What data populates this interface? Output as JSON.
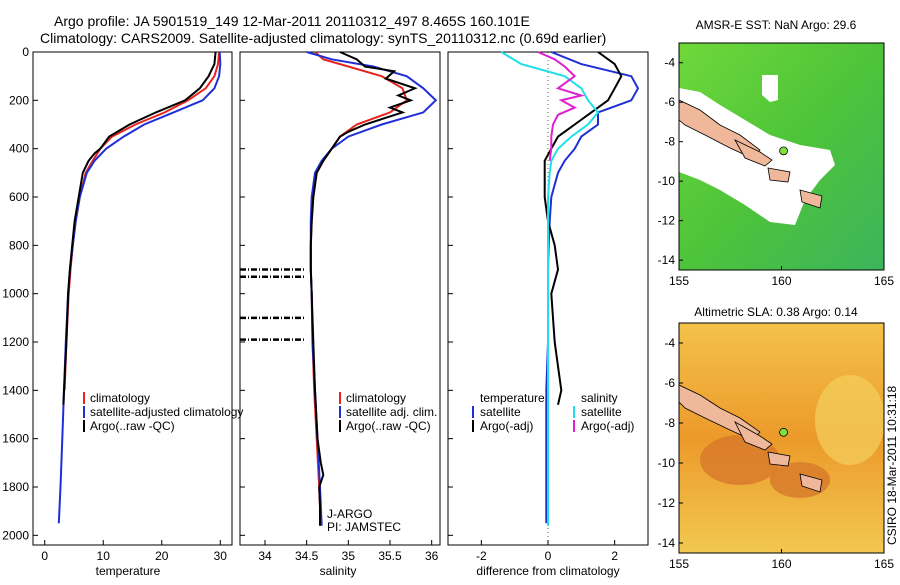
{
  "header": {
    "line1": "Argo profile: JA 5901519_149 12-Mar-2011 20110312_497 8.465S 160.101E",
    "line2": "Climatology: CARS2009. Satellite-adjusted climatology: synTS_20110312.nc (0.69d earlier)"
  },
  "colors": {
    "climatology": "#e8231e",
    "satellite": "#1f2fd6",
    "argo": "#000000",
    "satellite_diff_salt": "#1fe0e8",
    "argo_diff_salt": "#e01fd0"
  },
  "chart_data": [
    {
      "type": "line",
      "id": "temperature",
      "xlabel": "temperature",
      "ylabel": "",
      "xlim": [
        -2,
        32
      ],
      "ylim": [
        2040,
        0
      ],
      "xticks": [
        0,
        10,
        20,
        30
      ],
      "yticks": [
        0,
        200,
        400,
        600,
        800,
        1000,
        1200,
        1400,
        1600,
        1800,
        2000
      ],
      "legend": [
        "climatology",
        "satellite-adjusted climatology",
        "Argo(..raw -QC)"
      ],
      "series": [
        {
          "name": "climatology",
          "color": "#e8231e",
          "points": [
            [
              29.8,
              0
            ],
            [
              29.6,
              50
            ],
            [
              29.0,
              100
            ],
            [
              27.5,
              150
            ],
            [
              24.5,
              200
            ],
            [
              20.5,
              250
            ],
            [
              15.5,
              300
            ],
            [
              11.5,
              350
            ],
            [
              9.5,
              400
            ],
            [
              8.2,
              450
            ],
            [
              7.0,
              500
            ],
            [
              6.0,
              600
            ],
            [
              5.3,
              700
            ],
            [
              4.8,
              800
            ],
            [
              4.4,
              900
            ],
            [
              4.1,
              1000
            ],
            [
              3.7,
              1200
            ],
            [
              3.4,
              1400
            ]
          ]
        },
        {
          "name": "satellite-adjusted climatology",
          "color": "#1f2fd6",
          "points": [
            [
              29.9,
              0
            ],
            [
              30.0,
              50
            ],
            [
              29.8,
              100
            ],
            [
              29.0,
              150
            ],
            [
              27.0,
              200
            ],
            [
              22.0,
              250
            ],
            [
              17.0,
              300
            ],
            [
              13.5,
              350
            ],
            [
              10.5,
              400
            ],
            [
              8.5,
              450
            ],
            [
              7.2,
              500
            ],
            [
              6.0,
              600
            ],
            [
              5.3,
              700
            ],
            [
              4.8,
              800
            ],
            [
              4.3,
              900
            ],
            [
              4.0,
              1000
            ],
            [
              3.6,
              1200
            ],
            [
              3.3,
              1400
            ],
            [
              3.0,
              1600
            ],
            [
              2.7,
              1800
            ],
            [
              2.4,
              1950
            ]
          ]
        },
        {
          "name": "Argo(..raw -QC)",
          "color": "#000000",
          "points": [
            [
              29.2,
              0
            ],
            [
              29.0,
              50
            ],
            [
              28.0,
              100
            ],
            [
              26.5,
              150
            ],
            [
              24.0,
              200
            ],
            [
              19.0,
              250
            ],
            [
              14.5,
              300
            ],
            [
              11.0,
              350
            ],
            [
              9.5,
              400
            ],
            [
              8.5,
              420
            ],
            [
              7.5,
              450
            ],
            [
              6.5,
              500
            ],
            [
              5.8,
              600
            ],
            [
              5.1,
              700
            ],
            [
              4.7,
              800
            ],
            [
              4.3,
              900
            ],
            [
              4.0,
              1000
            ],
            [
              3.7,
              1200
            ],
            [
              3.5,
              1300
            ],
            [
              3.3,
              1400
            ],
            [
              3.2,
              1460
            ]
          ]
        }
      ]
    },
    {
      "type": "line",
      "id": "salinity",
      "xlabel": "salinity",
      "ylabel": "",
      "xlim": [
        33.7,
        36.1
      ],
      "ylim": [
        2040,
        0
      ],
      "xticks": [
        34,
        34.5,
        35,
        35.5,
        36
      ],
      "legend": [
        "climatology",
        "satellite adj. clim.",
        "Argo(..raw -QC)"
      ],
      "notes": [
        "J-ARGO",
        "PI: JAMSTEC"
      ],
      "series": [
        {
          "name": "climatology",
          "color": "#e8231e",
          "points": [
            [
              34.6,
              0
            ],
            [
              34.7,
              30
            ],
            [
              35.0,
              60
            ],
            [
              35.4,
              100
            ],
            [
              35.65,
              150
            ],
            [
              35.7,
              200
            ],
            [
              35.5,
              250
            ],
            [
              35.1,
              300
            ],
            [
              34.9,
              350
            ],
            [
              34.8,
              400
            ],
            [
              34.7,
              450
            ],
            [
              34.62,
              500
            ],
            [
              34.58,
              600
            ],
            [
              34.56,
              700
            ],
            [
              34.55,
              800
            ],
            [
              34.55,
              900
            ],
            [
              34.56,
              1000
            ],
            [
              34.57,
              1200
            ],
            [
              34.59,
              1400
            ],
            [
              34.62,
              1600
            ],
            [
              34.65,
              1800
            ],
            [
              34.67,
              1960
            ]
          ]
        },
        {
          "name": "satellite adj. clim.",
          "color": "#1f2fd6",
          "points": [
            [
              34.5,
              0
            ],
            [
              34.8,
              30
            ],
            [
              35.3,
              60
            ],
            [
              35.7,
              100
            ],
            [
              35.9,
              150
            ],
            [
              36.05,
              200
            ],
            [
              35.9,
              250
            ],
            [
              35.4,
              300
            ],
            [
              35.0,
              350
            ],
            [
              34.8,
              400
            ],
            [
              34.68,
              450
            ],
            [
              34.6,
              500
            ],
            [
              34.56,
              600
            ],
            [
              34.55,
              700
            ],
            [
              34.55,
              800
            ],
            [
              34.55,
              900
            ],
            [
              34.56,
              1000
            ],
            [
              34.57,
              1200
            ],
            [
              34.6,
              1400
            ],
            [
              34.63,
              1600
            ],
            [
              34.66,
              1800
            ],
            [
              34.68,
              1960
            ]
          ]
        },
        {
          "name": "Argo(..raw -QC)",
          "color": "#000000",
          "points": [
            [
              34.9,
              0
            ],
            [
              35.1,
              30
            ],
            [
              35.2,
              60
            ],
            [
              35.55,
              80
            ],
            [
              35.45,
              110
            ],
            [
              35.8,
              150
            ],
            [
              35.6,
              180
            ],
            [
              35.75,
              200
            ],
            [
              35.5,
              230
            ],
            [
              35.65,
              250
            ],
            [
              35.2,
              300
            ],
            [
              35.0,
              330
            ],
            [
              34.9,
              350
            ],
            [
              34.8,
              400
            ],
            [
              34.7,
              450
            ],
            [
              34.62,
              500
            ],
            [
              34.58,
              600
            ],
            [
              34.56,
              700
            ],
            [
              34.55,
              800
            ],
            [
              34.55,
              900
            ],
            [
              34.56,
              1000
            ],
            [
              34.58,
              1200
            ],
            [
              34.6,
              1400
            ],
            [
              34.63,
              1600
            ],
            [
              34.67,
              1700
            ],
            [
              34.7,
              1750
            ],
            [
              34.65,
              1800
            ],
            [
              34.66,
              1880
            ],
            [
              34.66,
              1960
            ]
          ]
        }
      ],
      "qc_flag_depths": [
        900,
        930,
        1100,
        1190
      ]
    },
    {
      "type": "line",
      "id": "difference",
      "xlabel": "difference from climatology",
      "ylabel": "",
      "xlim": [
        -3,
        3
      ],
      "ylim": [
        2040,
        0
      ],
      "xticks": [
        -2,
        0,
        2
      ],
      "legend_left_title": "temperature",
      "legend_right_title": "salinity",
      "legend": [
        "satellite",
        "Argo(-adj)",
        "satellite",
        "Argo(-adj)"
      ],
      "series": [
        {
          "name": "satellite",
          "group": "temperature",
          "color": "#1f2fd6",
          "points": [
            [
              0.1,
              0
            ],
            [
              1.0,
              50
            ],
            [
              2.5,
              100
            ],
            [
              2.7,
              150
            ],
            [
              2.5,
              200
            ],
            [
              1.5,
              250
            ],
            [
              1.5,
              300
            ],
            [
              1.0,
              350
            ],
            [
              0.8,
              400
            ],
            [
              0.5,
              450
            ],
            [
              0.3,
              500
            ],
            [
              0.1,
              600
            ],
            [
              0.05,
              700
            ],
            [
              0.02,
              800
            ],
            [
              0,
              900
            ],
            [
              0,
              1000
            ],
            [
              0,
              1200
            ],
            [
              -0.05,
              1400
            ],
            [
              -0.05,
              1600
            ],
            [
              -0.05,
              1800
            ],
            [
              -0.05,
              1950
            ]
          ]
        },
        {
          "name": "Argo(-adj)",
          "group": "temperature",
          "color": "#000000",
          "points": [
            [
              1.5,
              0
            ],
            [
              2.0,
              50
            ],
            [
              2.2,
              100
            ],
            [
              2.0,
              150
            ],
            [
              1.8,
              200
            ],
            [
              1.3,
              250
            ],
            [
              0.8,
              300
            ],
            [
              0.3,
              350
            ],
            [
              0.1,
              400
            ],
            [
              -0.1,
              450
            ],
            [
              -0.1,
              500
            ],
            [
              -0.1,
              600
            ],
            [
              0,
              700
            ],
            [
              0.2,
              800
            ],
            [
              0.3,
              900
            ],
            [
              0.1,
              1000
            ],
            [
              0.2,
              1200
            ],
            [
              0.3,
              1300
            ],
            [
              0.4,
              1400
            ],
            [
              0.3,
              1460
            ]
          ]
        },
        {
          "name": "satellite",
          "group": "salinity",
          "color": "#1fe0e8",
          "points": [
            [
              -1.4,
              0
            ],
            [
              -0.8,
              50
            ],
            [
              0.5,
              100
            ],
            [
              1.0,
              150
            ],
            [
              1.2,
              200
            ],
            [
              1.5,
              250
            ],
            [
              1.2,
              300
            ],
            [
              0.7,
              350
            ],
            [
              0.3,
              400
            ],
            [
              0.1,
              450
            ],
            [
              0.05,
              500
            ],
            [
              0,
              600
            ],
            [
              0,
              800
            ],
            [
              0,
              1000
            ],
            [
              0,
              1200
            ],
            [
              0,
              1400
            ],
            [
              0,
              1600
            ],
            [
              0,
              1800
            ],
            [
              0,
              1960
            ]
          ]
        },
        {
          "name": "Argo(-adj)",
          "group": "salinity",
          "color": "#e01fd0",
          "points": [
            [
              -0.3,
              0
            ],
            [
              0.2,
              30
            ],
            [
              0.5,
              60
            ],
            [
              0.8,
              100
            ],
            [
              0.3,
              150
            ],
            [
              1.0,
              180
            ],
            [
              0.4,
              200
            ],
            [
              0.8,
              230
            ],
            [
              0.3,
              260
            ],
            [
              0.15,
              300
            ],
            [
              0.1,
              350
            ],
            [
              0.1,
              400
            ],
            [
              0.05,
              450
            ]
          ]
        }
      ]
    },
    {
      "type": "heatmap",
      "id": "sst_map",
      "title": "AMSR-E SST: NaN Argo: 29.6",
      "xlim": [
        155,
        165
      ],
      "ylim": [
        -14.5,
        -3
      ],
      "xticks": [
        155,
        160,
        165
      ],
      "yticks": [
        -4,
        -6,
        -8,
        -10,
        -12,
        -14
      ],
      "argo_position": [
        160.101,
        -8.465
      ]
    },
    {
      "type": "heatmap",
      "id": "sla_map",
      "title": "Altimetric SLA: 0.38 Argo: 0.14",
      "xlim": [
        155,
        165
      ],
      "ylim": [
        -14.5,
        -3
      ],
      "xticks": [
        155,
        160,
        165
      ],
      "yticks": [
        -4,
        -6,
        -8,
        -10,
        -12,
        -14
      ],
      "argo_position": [
        160.101,
        -8.465
      ]
    }
  ],
  "footer": {
    "stamp": "CSIRO 18-Mar-2011 10:31:18"
  }
}
